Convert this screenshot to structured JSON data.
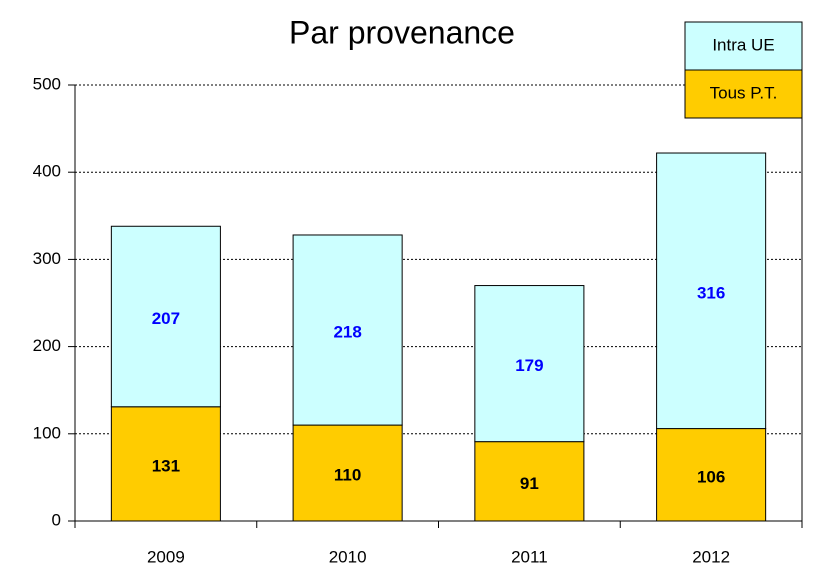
{
  "chart_data": {
    "type": "stacked_bar",
    "title": "Par provenance",
    "categories": [
      "2009",
      "2010",
      "2011",
      "2012"
    ],
    "series": [
      {
        "name": "Tous P.T.",
        "color": "#ffcc00",
        "label_color": "#000000",
        "values": [
          131,
          110,
          91,
          106
        ]
      },
      {
        "name": "Intra UE",
        "color": "#ccffff",
        "label_color": "#0000ff",
        "values": [
          207,
          218,
          179,
          316
        ]
      }
    ],
    "ylim": [
      0,
      500
    ],
    "yticks": [
      0,
      100,
      200,
      300,
      400,
      500
    ],
    "grid": true,
    "legend": "top-right"
  }
}
